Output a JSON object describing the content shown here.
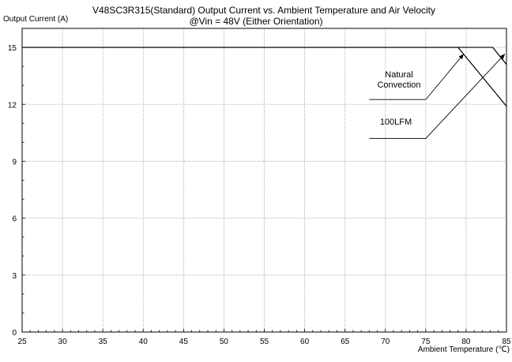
{
  "chart_data": {
    "type": "line",
    "title": "V48SC3R315(Standard)  Output Current vs. Ambient Temperature and Air Velocity",
    "subtitle": "@Vin = 48V (Either Orientation)",
    "xlabel": "Ambient Temperature (℃)",
    "ylabel": "Output Current (A)",
    "xlim": [
      25,
      85
    ],
    "ylim": [
      0,
      16
    ],
    "x_ticks": [
      25,
      30,
      35,
      40,
      45,
      50,
      55,
      60,
      65,
      70,
      75,
      80,
      85
    ],
    "y_ticks": [
      0,
      3,
      6,
      9,
      12,
      15
    ],
    "grid": true,
    "legend": "none",
    "series": [
      {
        "points": [
          [
            25,
            15
          ],
          [
            79,
            15
          ],
          [
            85,
            11.9
          ]
        ]
      },
      {
        "points": [
          [
            25,
            15
          ],
          [
            83.3,
            15
          ],
          [
            85,
            14.1
          ]
        ]
      }
    ],
    "annotations": [
      {
        "lines": [
          "Natural",
          "Convection"
        ],
        "leader": [
          [
            68,
            12.25
          ],
          [
            75,
            12.25
          ],
          [
            79.7,
            14.65
          ]
        ]
      },
      {
        "lines": [
          "100LFM"
        ],
        "leader": [
          [
            68,
            10.2
          ],
          [
            75,
            10.2
          ],
          [
            84.8,
            14.65
          ]
        ]
      }
    ]
  }
}
